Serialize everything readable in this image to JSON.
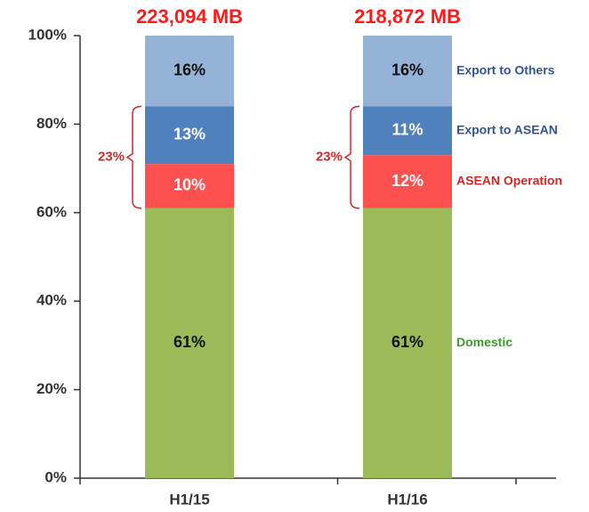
{
  "chart_data": {
    "type": "stacked_bar",
    "categories": [
      "H1/15",
      "H1/16"
    ],
    "series": [
      {
        "name": "Domestic",
        "color": "#9bbb59",
        "legend_color": "#3a9a2a",
        "values": [
          61,
          61
        ],
        "value_labels": [
          "61%",
          "61%"
        ]
      },
      {
        "name": "ASEAN Operation",
        "color": "#ff5050",
        "legend_color": "#d02828",
        "values": [
          10,
          12
        ],
        "value_labels": [
          "10%",
          "12%"
        ]
      },
      {
        "name": "Export to ASEAN",
        "color": "#4f81bd",
        "legend_color": "#2f5597",
        "values": [
          13,
          11
        ],
        "value_labels": [
          "13%",
          "11%"
        ]
      },
      {
        "name": "Export to Others",
        "color": "#95b3d7",
        "legend_color": "#2f5597",
        "values": [
          16,
          16
        ],
        "value_labels": [
          "16%",
          "16%"
        ]
      }
    ],
    "total_labels": [
      "223,094 MB",
      "218,872 MB"
    ],
    "bracket_labels": [
      "23%",
      "23%"
    ],
    "ylim": [
      0,
      100
    ],
    "yticks": [
      {
        "value": 0,
        "label": "0%"
      },
      {
        "value": 20,
        "label": "20%"
      },
      {
        "value": 40,
        "label": "40%"
      },
      {
        "value": 60,
        "label": "60%"
      },
      {
        "value": 80,
        "label": "80%"
      },
      {
        "value": 100,
        "label": "100%"
      }
    ],
    "legend": "right"
  }
}
